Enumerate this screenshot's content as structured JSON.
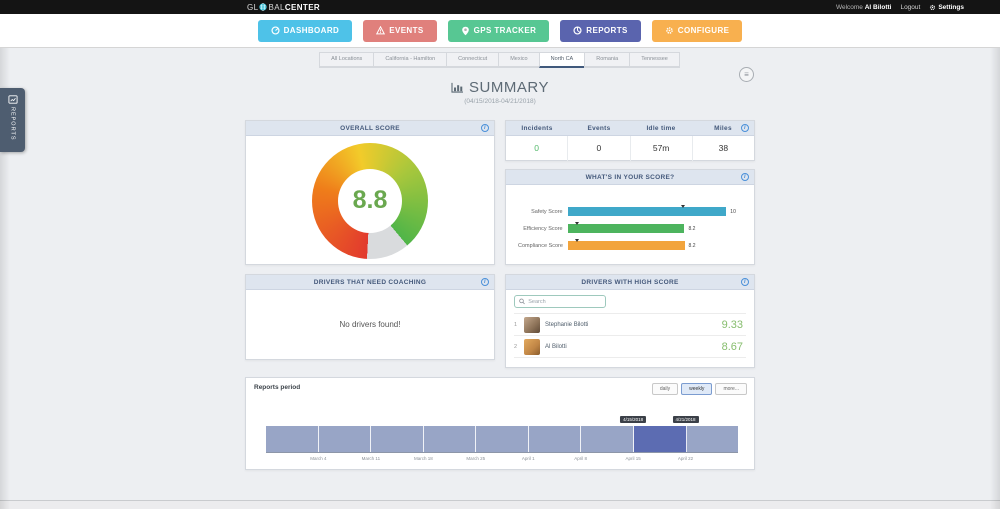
{
  "topbar": {
    "logo_gl": "GL",
    "logo_bal": "BAL",
    "logo_center": "CENTER",
    "welcome": "Welcome",
    "username": "Al Bilotti",
    "logout": "Logout",
    "settings": "Settings"
  },
  "nav": {
    "buttons": [
      {
        "label": "DASHBOARD",
        "color": "#4ec2e8"
      },
      {
        "label": "EVENTS",
        "color": "#e0807c"
      },
      {
        "label": "GPS TRACKER",
        "color": "#57c793"
      },
      {
        "label": "REPORTS",
        "color": "#5a64ae"
      },
      {
        "label": "CONFIGURE",
        "color": "#f8b04f"
      }
    ]
  },
  "tabs": [
    {
      "label": "All Locations",
      "active": false
    },
    {
      "label": "California - Hamilton",
      "active": false
    },
    {
      "label": "Connecticut",
      "active": false
    },
    {
      "label": "Mexico",
      "active": false
    },
    {
      "label": "North CA",
      "active": true
    },
    {
      "label": "Romania",
      "active": false
    },
    {
      "label": "Tennessee",
      "active": false
    }
  ],
  "side_tab": {
    "label": "REPORTS"
  },
  "page": {
    "title": "SUMMARY",
    "subtitle": "(04/15/2018-04/21/2018)"
  },
  "overall_score": {
    "header": "OVERALL SCORE",
    "value": "8.8",
    "max": 10,
    "value_color": "#6aa84f",
    "gauge_colors": [
      "#e23a2e",
      "#ef7d1a",
      "#f2cb2a",
      "#a8c73c",
      "#50b548"
    ],
    "gauge_rest_color": "#d9dbdd"
  },
  "stats": {
    "columns": [
      "Incidents",
      "Events",
      "Idle time",
      "Miles"
    ],
    "values": [
      {
        "text": "0",
        "color": "#53b96a"
      },
      {
        "text": "0",
        "color": "#333333"
      },
      {
        "text": "57m",
        "color": "#333333"
      },
      {
        "text": "38",
        "color": "#333333"
      }
    ]
  },
  "score_breakdown": {
    "header": "WHAT'S IN YOUR SCORE?",
    "rows": [
      {
        "label": "Safety Score",
        "value": "10",
        "pct": 91,
        "marker_pct": 65,
        "color": "#3fa8c9"
      },
      {
        "label": "Efficiency Score",
        "value": "8.2",
        "pct": 67,
        "marker_pct": 4,
        "color": "#4db45e"
      },
      {
        "label": "Compliance Score",
        "value": "8.2",
        "pct": 67,
        "marker_pct": 4,
        "color": "#f2a43c"
      }
    ]
  },
  "coaching": {
    "header": "DRIVERS THAT NEED COACHING",
    "empty_message": "No drivers found!"
  },
  "high_score": {
    "header": "DRIVERS WITH HIGH SCORE",
    "search_placeholder": "Search",
    "score_color": "#86bd6d",
    "drivers": [
      {
        "rank": "1",
        "name": "Stephanie Bilotti",
        "score": "9.33"
      },
      {
        "rank": "2",
        "name": "Al Bilotti",
        "score": "8.67"
      }
    ]
  },
  "reports_period": {
    "title": "Reports period",
    "buttons": [
      {
        "label": "daily",
        "active": false
      },
      {
        "label": "weekly",
        "active": true
      },
      {
        "label": "more...",
        "active": false
      }
    ],
    "chart_data": {
      "type": "area",
      "x_labels": [
        "March 4",
        "March 11",
        "March 18",
        "March 25",
        "April 1",
        "April 8",
        "April 15",
        "April 22"
      ],
      "weeks_total": 9,
      "selected_week_index": 7,
      "selection_tooltips": [
        "4/15/2018",
        "4/21/2018"
      ],
      "band_color": "#98a5c6",
      "selected_color": "#5c6cb2"
    }
  }
}
